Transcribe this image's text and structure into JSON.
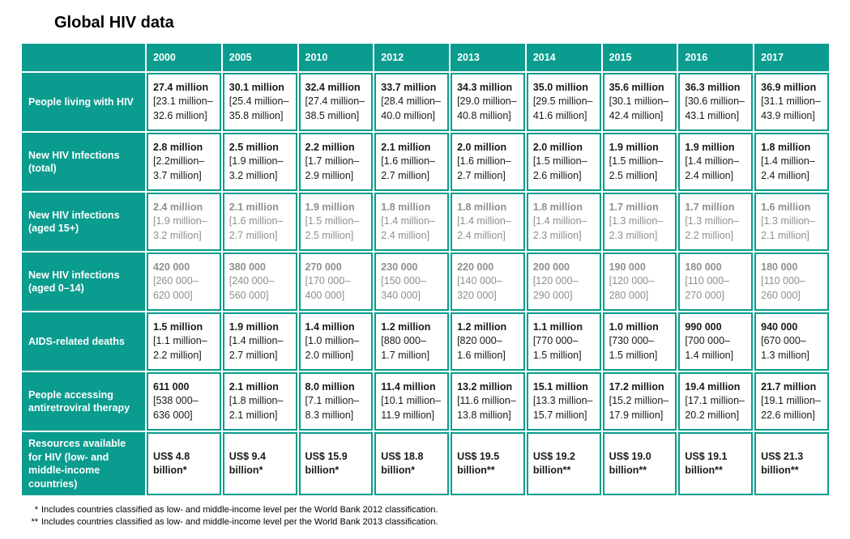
{
  "page_title": "Global HIV data",
  "colors": {
    "teal": "#0a9c8e",
    "header_text": "#ffffff",
    "value_black": "#1a1a1a",
    "value_gray": "#8f8f8f"
  },
  "table": {
    "columns": [
      "2000",
      "2005",
      "2010",
      "2012",
      "2013",
      "2014",
      "2015",
      "2016",
      "2017"
    ],
    "rows": [
      {
        "label": "People living with HIV",
        "text_color": "black",
        "cells": [
          {
            "value": "27.4 million",
            "range": "[23.1 million–32.6 million]"
          },
          {
            "value": "30.1 million",
            "range": "[25.4 million–35.8 million]"
          },
          {
            "value": "32.4 million",
            "range": "[27.4 million–38.5 million]"
          },
          {
            "value": "33.7 million",
            "range": "[28.4 million–40.0 million]"
          },
          {
            "value": "34.3 million",
            "range": "[29.0 million–40.8 million]"
          },
          {
            "value": "35.0 million",
            "range": "[29.5 million–41.6 million]"
          },
          {
            "value": "35.6 million",
            "range": "[30.1 million–42.4 million]"
          },
          {
            "value": "36.3 million",
            "range": "[30.6 million–43.1 million]"
          },
          {
            "value": "36.9 million",
            "range": "[31.1 million–43.9 million]"
          }
        ]
      },
      {
        "label": "New HIV Infections (total)",
        "text_color": "black",
        "cells": [
          {
            "value": "2.8 million",
            "range": "[2.2million–3.7 million]"
          },
          {
            "value": "2.5 million",
            "range": "[1.9 million–3.2 million]"
          },
          {
            "value": "2.2 million",
            "range": "[1.7 million–2.9 million]"
          },
          {
            "value": "2.1 million",
            "range": "[1.6 million–2.7 million]"
          },
          {
            "value": "2.0 million",
            "range": "[1.6 million–2.7 million]"
          },
          {
            "value": "2.0 million",
            "range": "[1.5 million–2.6 million]"
          },
          {
            "value": "1.9 million",
            "range": "[1.5 million–2.5 million]"
          },
          {
            "value": "1.9 million",
            "range": "[1.4 million–2.4 million]"
          },
          {
            "value": "1.8 million",
            "range": "[1.4 million–2.4 million]"
          }
        ]
      },
      {
        "label": "New HIV infections (aged 15+)",
        "text_color": "gray",
        "cells": [
          {
            "value": "2.4 million",
            "range": "[1.9 million–3.2 million]"
          },
          {
            "value": "2.1 million",
            "range": "[1.6 million–2.7 million]"
          },
          {
            "value": "1.9 million",
            "range": "[1.5 million–2.5 million]"
          },
          {
            "value": "1.8 million",
            "range": "[1.4 million–2.4 million]"
          },
          {
            "value": "1.8 million",
            "range": "[1.4 million–2.4 million]"
          },
          {
            "value": "1.8 million",
            "range": "[1.4 million–2.3 million]"
          },
          {
            "value": "1.7 million",
            "range": "[1.3 million–2.3 million]"
          },
          {
            "value": "1.7 million",
            "range": "[1.3 million–2.2 million]"
          },
          {
            "value": "1.6 million",
            "range": "[1.3 million–2.1 million]"
          }
        ]
      },
      {
        "label": "New HIV infections (aged 0–14)",
        "text_color": "gray",
        "cells": [
          {
            "value": "420 000",
            "range": "[260 000–620 000]"
          },
          {
            "value": "380 000",
            "range": "[240 000–560 000]"
          },
          {
            "value": "270 000",
            "range": "[170 000–400 000]"
          },
          {
            "value": "230 000",
            "range": "[150 000–340 000]"
          },
          {
            "value": "220 000",
            "range": "[140 000–320 000]"
          },
          {
            "value": "200 000",
            "range": "[120 000–290 000]"
          },
          {
            "value": "190 000",
            "range": "[120 000–280 000]"
          },
          {
            "value": "180 000",
            "range": "[110 000–270 000]"
          },
          {
            "value": "180 000",
            "range": "[110 000–260 000]"
          }
        ]
      },
      {
        "label": "AIDS-related deaths",
        "text_color": "black",
        "cells": [
          {
            "value": "1.5 million",
            "range": "[1.1 million–2.2 million]"
          },
          {
            "value": "1.9 million",
            "range": "[1.4 million–2.7 million]"
          },
          {
            "value": "1.4 million",
            "range": "[1.0 million–2.0 million]"
          },
          {
            "value": "1.2 million",
            "range": "[880 000–1.7 million]"
          },
          {
            "value": "1.2 million",
            "range": "[820 000–1.6 million]"
          },
          {
            "value": "1.1 million",
            "range": "[770 000–1.5 million]"
          },
          {
            "value": "1.0 million",
            "range": "[730 000–1.5 million]"
          },
          {
            "value": "990 000",
            "range": "[700 000–1.4 million]"
          },
          {
            "value": "940 000",
            "range": "[670 000–1.3 million]"
          }
        ]
      },
      {
        "label": "People accessing antiretroviral therapy",
        "text_color": "black",
        "cells": [
          {
            "value": "611 000",
            "range": "[538 000–636 000]"
          },
          {
            "value": "2.1 million",
            "range": "[1.8 million–2.1 million]"
          },
          {
            "value": "8.0 million",
            "range": "[7.1 million–8.3 million]"
          },
          {
            "value": "11.4 million",
            "range": "[10.1 million–11.9 million]"
          },
          {
            "value": "13.2 million",
            "range": "[11.6 million–13.8 million]"
          },
          {
            "value": "15.1 million",
            "range": "[13.3 million–15.7 million]"
          },
          {
            "value": "17.2 million",
            "range": "[15.2 million–17.9 million]"
          },
          {
            "value": "19.4 million",
            "range": "[17.1 million–20.2 million]"
          },
          {
            "value": "21.7 million",
            "range": "[19.1 million–22.6 million]"
          }
        ]
      },
      {
        "label": "Resources available for HIV (low- and middle-income countries)",
        "text_color": "black",
        "cells": [
          {
            "value": "US$ 4.8 billion*",
            "range": ""
          },
          {
            "value": "US$ 9.4 billion*",
            "range": ""
          },
          {
            "value": "US$ 15.9 billion*",
            "range": ""
          },
          {
            "value": "US$ 18.8 billion*",
            "range": ""
          },
          {
            "value": "US$ 19.5 billion**",
            "range": ""
          },
          {
            "value": "US$ 19.2 billion**",
            "range": ""
          },
          {
            "value": "US$ 19.0 billion**",
            "range": ""
          },
          {
            "value": "US$ 19.1 billion**",
            "range": ""
          },
          {
            "value": "US$ 21.3 billion**",
            "range": ""
          }
        ]
      }
    ]
  },
  "footnotes": [
    {
      "marker": "*",
      "text": "Includes countries classified as low- and middle-income level per the World Bank 2012 classification."
    },
    {
      "marker": "**",
      "text": "Includes countries classified as low- and middle-income level per the World Bank 2013 classification."
    }
  ]
}
